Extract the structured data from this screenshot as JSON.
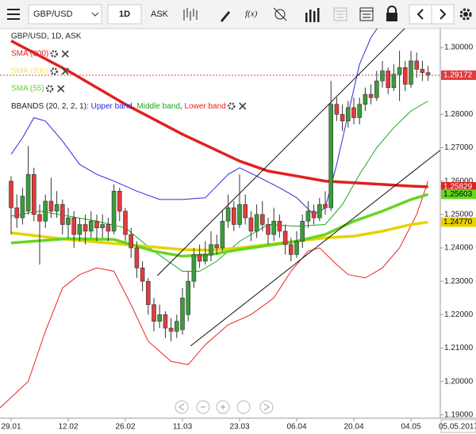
{
  "toolbar": {
    "symbol": "GBP/USD",
    "interval": "1D",
    "side": "ASK",
    "fx": "f(x)"
  },
  "chart_data": {
    "type": "candlestick",
    "title": "GBP/USD, 1D, ASK",
    "categories": [
      "29.01",
      null,
      null,
      null,
      null,
      null,
      null,
      null,
      null,
      null,
      "12.02",
      null,
      null,
      null,
      null,
      null,
      null,
      null,
      null,
      null,
      "26.02",
      null,
      null,
      null,
      null,
      null,
      null,
      null,
      null,
      null,
      "11.03",
      null,
      null,
      null,
      null,
      null,
      null,
      null,
      null,
      null,
      "23.03",
      null,
      null,
      null,
      null,
      null,
      null,
      null,
      null,
      null,
      "06.04",
      null,
      null,
      null,
      null,
      null,
      null,
      null,
      null,
      null,
      "20.04",
      null,
      null,
      null,
      null,
      null,
      null,
      null,
      null,
      null,
      "04.05",
      null,
      null,
      null
    ],
    "current_date": "05.05.2017",
    "candles": {
      "up_color": "#3a9d3a",
      "down_color": "#e03c3c",
      "last_label": "1.29172",
      "open": [
        1.26,
        1.252,
        1.249,
        1.251,
        1.262,
        1.25,
        1.248,
        1.254,
        1.251,
        1.253,
        1.247,
        1.249,
        1.244,
        1.247,
        1.245,
        1.248,
        1.246,
        1.247,
        1.245,
        1.257,
        1.251,
        1.244,
        1.24,
        1.234,
        1.23,
        1.223,
        1.218,
        1.22,
        1.216,
        1.215,
        1.2155,
        1.22,
        1.23,
        1.238,
        1.236,
        1.238,
        1.241,
        1.24,
        1.248,
        1.252,
        1.247,
        1.253,
        1.249,
        1.245,
        1.25,
        1.247,
        1.244,
        1.248,
        1.245,
        1.241,
        1.238,
        1.242,
        1.248,
        1.251,
        1.249,
        1.253,
        1.252,
        1.283,
        1.28,
        1.278,
        1.282,
        1.279,
        1.283,
        1.286,
        1.285,
        1.29,
        1.293,
        1.288,
        1.292,
        1.294,
        1.289,
        1.296,
        1.2935,
        1.2925
      ],
      "high": [
        1.2615,
        1.256,
        1.258,
        1.2705,
        1.264,
        1.253,
        1.256,
        1.261,
        1.257,
        1.2545,
        1.252,
        1.251,
        1.249,
        1.25,
        1.251,
        1.25,
        1.25,
        1.249,
        1.259,
        1.258,
        1.252,
        1.246,
        1.242,
        1.236,
        1.231,
        1.225,
        1.223,
        1.221,
        1.219,
        1.22,
        1.228,
        1.233,
        1.24,
        1.241,
        1.242,
        1.245,
        1.244,
        1.251,
        1.256,
        1.254,
        1.262,
        1.256,
        1.251,
        1.253,
        1.254,
        1.249,
        1.252,
        1.25,
        1.247,
        1.243,
        1.245,
        1.25,
        1.254,
        1.253,
        1.255,
        1.257,
        1.29,
        1.285,
        1.283,
        1.284,
        1.285,
        1.285,
        1.288,
        1.289,
        1.293,
        1.296,
        1.294,
        1.295,
        1.299,
        1.296,
        1.299,
        1.2985,
        1.296,
        1.2945
      ],
      "low": [
        1.244,
        1.246,
        1.247,
        1.25,
        1.248,
        1.235,
        1.246,
        1.249,
        1.249,
        1.244,
        1.243,
        1.24,
        1.242,
        1.241,
        1.243,
        1.242,
        1.243,
        1.242,
        1.244,
        1.248,
        1.242,
        1.237,
        1.231,
        1.227,
        1.22,
        1.215,
        1.216,
        1.213,
        1.212,
        1.213,
        1.214,
        1.218,
        1.228,
        1.234,
        1.235,
        1.236,
        1.238,
        1.239,
        1.246,
        1.245,
        1.246,
        1.247,
        1.242,
        1.243,
        1.245,
        1.241,
        1.242,
        1.243,
        1.238,
        1.236,
        1.237,
        1.24,
        1.246,
        1.247,
        1.248,
        1.25,
        1.251,
        1.278,
        1.275,
        1.276,
        1.277,
        1.277,
        1.281,
        1.283,
        1.284,
        1.288,
        1.286,
        1.287,
        1.284,
        1.287,
        1.288,
        1.291,
        1.29,
        1.29
      ],
      "close": [
        1.252,
        1.249,
        1.2555,
        1.262,
        1.25,
        1.248,
        1.254,
        1.251,
        1.253,
        1.247,
        1.249,
        1.244,
        1.247,
        1.245,
        1.248,
        1.246,
        1.247,
        1.245,
        1.257,
        1.251,
        1.244,
        1.24,
        1.234,
        1.23,
        1.223,
        1.218,
        1.22,
        1.216,
        1.215,
        1.218,
        1.225,
        1.23,
        1.238,
        1.236,
        1.238,
        1.241,
        1.24,
        1.248,
        1.252,
        1.247,
        1.253,
        1.249,
        1.245,
        1.25,
        1.247,
        1.244,
        1.248,
        1.245,
        1.241,
        1.238,
        1.242,
        1.248,
        1.251,
        1.249,
        1.253,
        1.252,
        1.283,
        1.28,
        1.278,
        1.282,
        1.279,
        1.283,
        1.286,
        1.285,
        1.29,
        1.293,
        1.288,
        1.292,
        1.294,
        1.289,
        1.296,
        1.2935,
        1.2925,
        1.29172
      ]
    },
    "series": [
      {
        "name": "SMA (200)",
        "color": "#e02020",
        "width": 3.5,
        "last_label": "1.25829",
        "x": [
          0,
          10,
          20,
          30,
          40,
          45,
          50,
          55,
          60,
          65,
          70,
          73
        ],
        "values": [
          1.302,
          1.293,
          1.283,
          1.274,
          1.266,
          1.263,
          1.2615,
          1.26,
          1.2595,
          1.259,
          1.2585,
          1.25829
        ]
      },
      {
        "name": "SMA (100)",
        "color": "#e8d200",
        "width": 3.5,
        "last_label": "1.24770",
        "x": [
          0,
          10,
          20,
          30,
          35,
          40,
          50,
          55,
          60,
          65,
          70,
          73
        ],
        "values": [
          1.2445,
          1.2425,
          1.241,
          1.2395,
          1.2393,
          1.24,
          1.242,
          1.243,
          1.2435,
          1.245,
          1.247,
          1.2477
        ]
      },
      {
        "name": "SMA (55)",
        "color": "#66d620",
        "width": 3.5,
        "last_label": "1.25603",
        "x": [
          0,
          10,
          18,
          25,
          30,
          35,
          40,
          50,
          55,
          60,
          65,
          70,
          73
        ],
        "values": [
          1.2415,
          1.2428,
          1.2425,
          1.239,
          1.2375,
          1.238,
          1.2395,
          1.242,
          1.244,
          1.248,
          1.251,
          1.2545,
          1.25603
        ]
      }
    ],
    "bbands": {
      "label": "BBANDS (20, 2, 2, 1):",
      "separator": ", ",
      "series": [
        {
          "name": "Upper band",
          "color": "#2a2ae0",
          "width": 1,
          "x": [
            0,
            2,
            4,
            6,
            9,
            12,
            15,
            18,
            22,
            26,
            30,
            34,
            38,
            40,
            43,
            47,
            50,
            53,
            55,
            57,
            59,
            61,
            63,
            65
          ],
          "values": [
            1.268,
            1.273,
            1.279,
            1.278,
            1.272,
            1.265,
            1.262,
            1.26,
            1.257,
            1.2545,
            1.2545,
            1.255,
            1.262,
            1.264,
            1.2615,
            1.258,
            1.255,
            1.25,
            1.252,
            1.265,
            1.28,
            1.295,
            1.303,
            1.308
          ]
        },
        {
          "name": "Middle band",
          "color": "#1aa81a",
          "width": 1,
          "x": [
            0,
            5,
            10,
            15,
            20,
            25,
            30,
            33,
            36,
            40,
            45,
            50,
            55,
            58,
            61,
            64,
            67,
            70,
            73
          ],
          "values": [
            1.2495,
            1.251,
            1.2495,
            1.248,
            1.246,
            1.239,
            1.233,
            1.233,
            1.236,
            1.242,
            1.247,
            1.2465,
            1.247,
            1.253,
            1.262,
            1.27,
            1.276,
            1.281,
            1.284
          ]
        },
        {
          "name": "Lower band",
          "color": "#ee2020",
          "width": 1,
          "x": [
            -2,
            3,
            6,
            9,
            12,
            15,
            18,
            21,
            24,
            28,
            31,
            34,
            38,
            42,
            46,
            49,
            52,
            54,
            57,
            59,
            62,
            65,
            68,
            71,
            73
          ],
          "values": [
            1.192,
            1.2,
            1.215,
            1.228,
            1.232,
            1.234,
            1.233,
            1.223,
            1.212,
            1.206,
            1.205,
            1.211,
            1.217,
            1.22,
            1.225,
            1.233,
            1.239,
            1.24,
            1.235,
            1.232,
            1.231,
            1.234,
            1.24,
            1.25,
            1.26
          ]
        }
      ]
    },
    "trendlines": [
      {
        "x": [
          25.6,
          68.9
        ],
        "values": [
          1.2317,
          1.3057
        ]
      },
      {
        "x": [
          31.4,
          75.1
        ],
        "values": [
          1.2106,
          1.2692
        ]
      }
    ],
    "ylim": [
      1.189,
      1.3057
    ],
    "yticks": [
      {
        "value": 1.19,
        "label": "1.19000"
      },
      {
        "value": 1.2,
        "label": "1.20000"
      },
      {
        "value": 1.21,
        "label": "1.21000"
      },
      {
        "value": 1.22,
        "label": "1.22000"
      },
      {
        "value": 1.23,
        "label": "1.23000"
      },
      {
        "value": 1.24,
        "label": "1.24000"
      },
      {
        "value": 1.25,
        "label": "1.25000"
      },
      {
        "value": 1.26,
        "label": "1.26000"
      },
      {
        "value": 1.27,
        "label": "1.27000"
      },
      {
        "value": 1.28,
        "label": "1.28000"
      },
      {
        "value": 1.3,
        "label": "1.30000"
      }
    ]
  }
}
